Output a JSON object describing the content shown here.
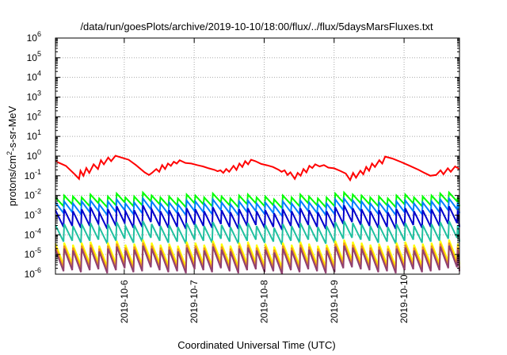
{
  "chart_data": {
    "type": "line",
    "title": "/data/run/goesPlots/archive/2019-10-10/18:00/flux/../flux/5daysMarsFluxes.txt",
    "xlabel": "Coordinated Universal Time (UTC)",
    "ylabel_parts": {
      "base": "protons/cm",
      "sup": "2",
      "rest": "-s-sr-MeV"
    },
    "x_range": [
      "2019-10-05 00:24",
      "2019-10-10 19:00"
    ],
    "x_ticks": [
      "2019-10-6",
      "2019-10-7",
      "2019-10-8",
      "2019-10-9",
      "2019-10-10"
    ],
    "y_scale": "log",
    "y_range": [
      1e-06,
      1000000.0
    ],
    "y_ticks": [
      {
        "base": "10",
        "exp": "-6"
      },
      {
        "base": "10",
        "exp": "-5"
      },
      {
        "base": "10",
        "exp": "-4"
      },
      {
        "base": "10",
        "exp": "-3"
      },
      {
        "base": "10",
        "exp": "-2"
      },
      {
        "base": "10",
        "exp": "-1"
      },
      {
        "base": "10",
        "exp": "0"
      },
      {
        "base": "10",
        "exp": "1"
      },
      {
        "base": "10",
        "exp": "2"
      },
      {
        "base": "10",
        "exp": "3"
      },
      {
        "base": "10",
        "exp": "4"
      },
      {
        "base": "10",
        "exp": "5"
      },
      {
        "base": "10",
        "exp": "6"
      }
    ],
    "grid": true,
    "series": [
      {
        "color": "#ff0000",
        "values": [
          [
            "2019-10-05 00:24",
            0.55
          ],
          [
            "2019-10-05 04:00",
            0.32
          ],
          [
            "2019-10-05 07:00",
            0.12
          ],
          [
            "2019-10-05 08:30",
            0.07
          ],
          [
            "2019-10-05 09:00",
            0.18
          ],
          [
            "2019-10-05 10:00",
            0.1
          ],
          [
            "2019-10-05 11:00",
            0.25
          ],
          [
            "2019-10-05 12:00",
            0.14
          ],
          [
            "2019-10-05 13:30",
            0.38
          ],
          [
            "2019-10-05 15:00",
            0.22
          ],
          [
            "2019-10-05 16:00",
            0.62
          ],
          [
            "2019-10-05 17:00",
            0.38
          ],
          [
            "2019-10-05 18:30",
            0.85
          ],
          [
            "2019-10-05 19:30",
            0.55
          ],
          [
            "2019-10-05 21:00",
            1.05
          ],
          [
            "2019-10-05 23:00",
            0.85
          ],
          [
            "2019-10-06 01:30",
            0.65
          ],
          [
            "2019-10-06 04:00",
            0.35
          ],
          [
            "2019-10-06 07:00",
            0.15
          ],
          [
            "2019-10-06 08:30",
            0.11
          ],
          [
            "2019-10-06 09:30",
            0.14
          ],
          [
            "2019-10-06 11:00",
            0.22
          ],
          [
            "2019-10-06 12:00",
            0.16
          ],
          [
            "2019-10-06 13:00",
            0.35
          ],
          [
            "2019-10-06 14:00",
            0.22
          ],
          [
            "2019-10-06 15:00",
            0.42
          ],
          [
            "2019-10-06 16:00",
            0.32
          ],
          [
            "2019-10-06 17:00",
            0.52
          ],
          [
            "2019-10-06 18:00",
            0.42
          ],
          [
            "2019-10-06 19:00",
            0.62
          ],
          [
            "2019-10-06 21:00",
            0.45
          ],
          [
            "2019-10-06 23:00",
            0.42
          ],
          [
            "2019-10-07 01:00",
            0.35
          ],
          [
            "2019-10-07 03:00",
            0.3
          ],
          [
            "2019-10-07 05:00",
            0.24
          ],
          [
            "2019-10-07 07:00",
            0.2
          ],
          [
            "2019-10-07 08:00",
            0.17
          ],
          [
            "2019-10-07 09:00",
            0.19
          ],
          [
            "2019-10-07 10:00",
            0.14
          ],
          [
            "2019-10-07 11:00",
            0.22
          ],
          [
            "2019-10-07 12:00",
            0.16
          ],
          [
            "2019-10-07 13:30",
            0.32
          ],
          [
            "2019-10-07 14:30",
            0.2
          ],
          [
            "2019-10-07 15:30",
            0.42
          ],
          [
            "2019-10-07 16:30",
            0.28
          ],
          [
            "2019-10-07 17:30",
            0.55
          ],
          [
            "2019-10-07 18:30",
            0.38
          ],
          [
            "2019-10-07 19:30",
            0.65
          ],
          [
            "2019-10-07 21:00",
            0.55
          ],
          [
            "2019-10-07 23:00",
            0.4
          ],
          [
            "2019-10-08 01:00",
            0.34
          ],
          [
            "2019-10-08 03:00",
            0.28
          ],
          [
            "2019-10-08 05:00",
            0.2
          ],
          [
            "2019-10-08 06:00",
            0.16
          ],
          [
            "2019-10-08 07:00",
            0.19
          ],
          [
            "2019-10-08 08:00",
            0.11
          ],
          [
            "2019-10-08 09:00",
            0.15
          ],
          [
            "2019-10-08 10:30",
            0.07
          ],
          [
            "2019-10-08 11:30",
            0.14
          ],
          [
            "2019-10-08 12:30",
            0.1
          ],
          [
            "2019-10-08 13:30",
            0.22
          ],
          [
            "2019-10-08 14:30",
            0.15
          ],
          [
            "2019-10-08 15:30",
            0.32
          ],
          [
            "2019-10-08 16:30",
            0.25
          ],
          [
            "2019-10-08 17:30",
            0.38
          ],
          [
            "2019-10-08 19:00",
            0.3
          ],
          [
            "2019-10-08 20:30",
            0.35
          ],
          [
            "2019-10-08 22:00",
            0.26
          ],
          [
            "2019-10-09 00:00",
            0.24
          ],
          [
            "2019-10-09 02:00",
            0.18
          ],
          [
            "2019-10-09 04:00",
            0.13
          ],
          [
            "2019-10-09 05:30",
            0.06
          ],
          [
            "2019-10-09 06:30",
            0.14
          ],
          [
            "2019-10-09 07:30",
            0.08
          ],
          [
            "2019-10-09 09:00",
            0.18
          ],
          [
            "2019-10-09 10:00",
            0.12
          ],
          [
            "2019-10-09 11:00",
            0.28
          ],
          [
            "2019-10-09 12:00",
            0.18
          ],
          [
            "2019-10-09 13:00",
            0.42
          ],
          [
            "2019-10-09 14:00",
            0.28
          ],
          [
            "2019-10-09 15:30",
            0.62
          ],
          [
            "2019-10-09 16:30",
            0.42
          ],
          [
            "2019-10-09 17:30",
            0.95
          ],
          [
            "2019-10-09 20:00",
            0.75
          ],
          [
            "2019-10-09 23:00",
            0.5
          ],
          [
            "2019-10-10 02:00",
            0.32
          ],
          [
            "2019-10-10 05:00",
            0.2
          ],
          [
            "2019-10-10 07:00",
            0.14
          ],
          [
            "2019-10-10 09:00",
            0.1
          ],
          [
            "2019-10-10 11:00",
            0.11
          ],
          [
            "2019-10-10 12:30",
            0.19
          ],
          [
            "2019-10-10 13:30",
            0.12
          ],
          [
            "2019-10-10 15:00",
            0.24
          ],
          [
            "2019-10-10 16:00",
            0.16
          ],
          [
            "2019-10-10 17:30",
            0.3
          ],
          [
            "2019-10-10 19:00",
            0.22
          ]
        ]
      },
      {
        "color": "#00ff00",
        "sawtooth": {
          "start": "2019-10-05 00:24",
          "end": "2019-10-10 19:00",
          "period_hours": 3,
          "peak_log10": [
            -2.1,
            -2.0,
            -2.05,
            -2.1,
            -1.95,
            -2.15,
            -2.05,
            -1.9,
            -2.1,
            -2.05,
            -1.85,
            -2.0,
            -2.1,
            -2.05,
            -2.15,
            -1.95,
            -2.0,
            -2.1,
            -1.9,
            -2.05,
            -2.15,
            -2.0,
            -1.95,
            -2.1,
            -2.05,
            -2.2,
            -2.0,
            -2.1,
            -1.95,
            -2.05,
            -2.15,
            -2.1,
            -1.9,
            -1.85,
            -1.95,
            -2.0,
            -2.1,
            -2.05,
            -2.15,
            -2.0,
            -1.95,
            -2.1,
            -2.05,
            -2.0,
            -1.9,
            -1.85
          ],
          "drop": 0.45
        }
      },
      {
        "color": "#0080ff",
        "sawtooth": {
          "start": "2019-10-05 00:24",
          "end": "2019-10-10 19:00",
          "period_hours": 3,
          "peak_log10": [
            -2.35,
            -2.3,
            -2.4,
            -2.3,
            -2.25,
            -2.45,
            -2.3,
            -2.2,
            -2.4,
            -2.35,
            -2.15,
            -2.3,
            -2.4,
            -2.35,
            -2.45,
            -2.25,
            -2.3,
            -2.4,
            -2.2,
            -2.35,
            -2.45,
            -2.3,
            -2.25,
            -2.4,
            -2.35,
            -2.5,
            -2.3,
            -2.4,
            -2.25,
            -2.35,
            -2.45,
            -2.4,
            -2.2,
            -2.15,
            -2.25,
            -2.3,
            -2.4,
            -2.35,
            -2.45,
            -2.3,
            -2.25,
            -2.4,
            -2.35,
            -2.3,
            -2.2,
            -2.15
          ],
          "drop": 0.55
        }
      },
      {
        "color": "#0000cc",
        "sawtooth": {
          "start": "2019-10-05 00:24",
          "end": "2019-10-10 19:00",
          "period_hours": 3,
          "peak_log10": [
            -2.75,
            -2.7,
            -2.8,
            -2.7,
            -2.6,
            -2.85,
            -2.7,
            -2.55,
            -2.8,
            -2.75,
            -2.5,
            -2.7,
            -2.8,
            -2.75,
            -2.85,
            -2.65,
            -2.7,
            -2.8,
            -2.6,
            -2.75,
            -2.85,
            -2.7,
            -2.65,
            -2.8,
            -2.75,
            -2.9,
            -2.7,
            -2.8,
            -2.65,
            -2.75,
            -2.85,
            -2.8,
            -2.6,
            -2.5,
            -2.65,
            -2.7,
            -2.8,
            -2.75,
            -2.85,
            -2.7,
            -2.65,
            -2.8,
            -2.75,
            -2.7,
            -2.6,
            -2.55
          ],
          "drop": 0.85
        }
      },
      {
        "color": "#20c0a0",
        "sawtooth": {
          "start": "2019-10-05 00:24",
          "end": "2019-10-10 19:00",
          "period_hours": 3,
          "peak_log10": [
            -3.5,
            -3.45,
            -3.55,
            -3.45,
            -3.4,
            -3.6,
            -3.45,
            -3.35,
            -3.55,
            -3.5,
            -3.3,
            -3.45,
            -3.55,
            -3.5,
            -3.6,
            -3.4,
            -3.45,
            -3.55,
            -3.35,
            -3.5,
            -3.6,
            -3.45,
            -3.4,
            -3.55,
            -3.5,
            -3.65,
            -3.45,
            -3.55,
            -3.4,
            -3.5,
            -3.6,
            -3.55,
            -3.35,
            -3.3,
            -3.4,
            -3.45,
            -3.55,
            -3.5,
            -3.6,
            -3.45,
            -3.4,
            -3.55,
            -3.5,
            -3.45,
            -3.35,
            -3.3
          ],
          "drop": 0.85
        }
      },
      {
        "color": "#ffff00",
        "sawtooth": {
          "start": "2019-10-05 00:24",
          "end": "2019-10-10 19:00",
          "period_hours": 3,
          "peak_log10": [
            -4.45,
            -4.4,
            -4.5,
            -4.4,
            -4.35,
            -4.55,
            -4.4,
            -4.3,
            -4.5,
            -4.45,
            -4.25,
            -4.4,
            -4.5,
            -4.45,
            -4.55,
            -4.35,
            -4.4,
            -4.5,
            -4.3,
            -4.45,
            -4.55,
            -4.4,
            -4.35,
            -4.5,
            -4.45,
            -4.6,
            -4.4,
            -4.5,
            -4.35,
            -4.45,
            -4.55,
            -4.5,
            -4.3,
            -4.25,
            -4.35,
            -4.4,
            -4.5,
            -4.45,
            -4.55,
            -4.4,
            -4.35,
            -4.5,
            -4.45,
            -4.4,
            -4.3,
            -4.25
          ],
          "drop": 1.05
        }
      },
      {
        "color": "#f09020",
        "sawtooth": {
          "start": "2019-10-05 00:24",
          "end": "2019-10-10 19:00",
          "period_hours": 3,
          "peak_log10": [
            -4.6,
            -4.55,
            -4.65,
            -4.55,
            -4.5,
            -4.7,
            -4.55,
            -4.45,
            -4.65,
            -4.6,
            -4.4,
            -4.55,
            -4.65,
            -4.6,
            -4.7,
            -4.5,
            -4.55,
            -4.65,
            -4.45,
            -4.6,
            -4.7,
            -4.55,
            -4.5,
            -4.65,
            -4.6,
            -4.75,
            -4.55,
            -4.65,
            -4.5,
            -4.6,
            -4.7,
            -4.65,
            -4.45,
            -4.4,
            -4.5,
            -4.55,
            -4.65,
            -4.6,
            -4.7,
            -4.55,
            -4.5,
            -4.65,
            -4.6,
            -4.55,
            -4.45,
            -4.4
          ],
          "drop": 1.1
        }
      },
      {
        "color": "#904070",
        "sawtooth": {
          "start": "2019-10-05 00:24",
          "end": "2019-10-10 19:00",
          "period_hours": 3,
          "peak_log10": [
            -4.75,
            -4.7,
            -4.8,
            -4.7,
            -4.65,
            -4.85,
            -4.7,
            -4.6,
            -4.8,
            -4.75,
            -4.55,
            -4.7,
            -4.8,
            -4.75,
            -4.85,
            -4.65,
            -4.7,
            -4.8,
            -4.6,
            -4.75,
            -4.85,
            -4.7,
            -4.65,
            -4.8,
            -4.75,
            -4.9,
            -4.7,
            -4.8,
            -4.65,
            -4.75,
            -4.85,
            -4.8,
            -4.6,
            -4.55,
            -4.65,
            -4.7,
            -4.8,
            -4.75,
            -4.85,
            -4.7,
            -4.65,
            -4.8,
            -4.75,
            -4.7,
            -4.6,
            -4.55
          ],
          "drop": 1.1
        }
      }
    ]
  }
}
